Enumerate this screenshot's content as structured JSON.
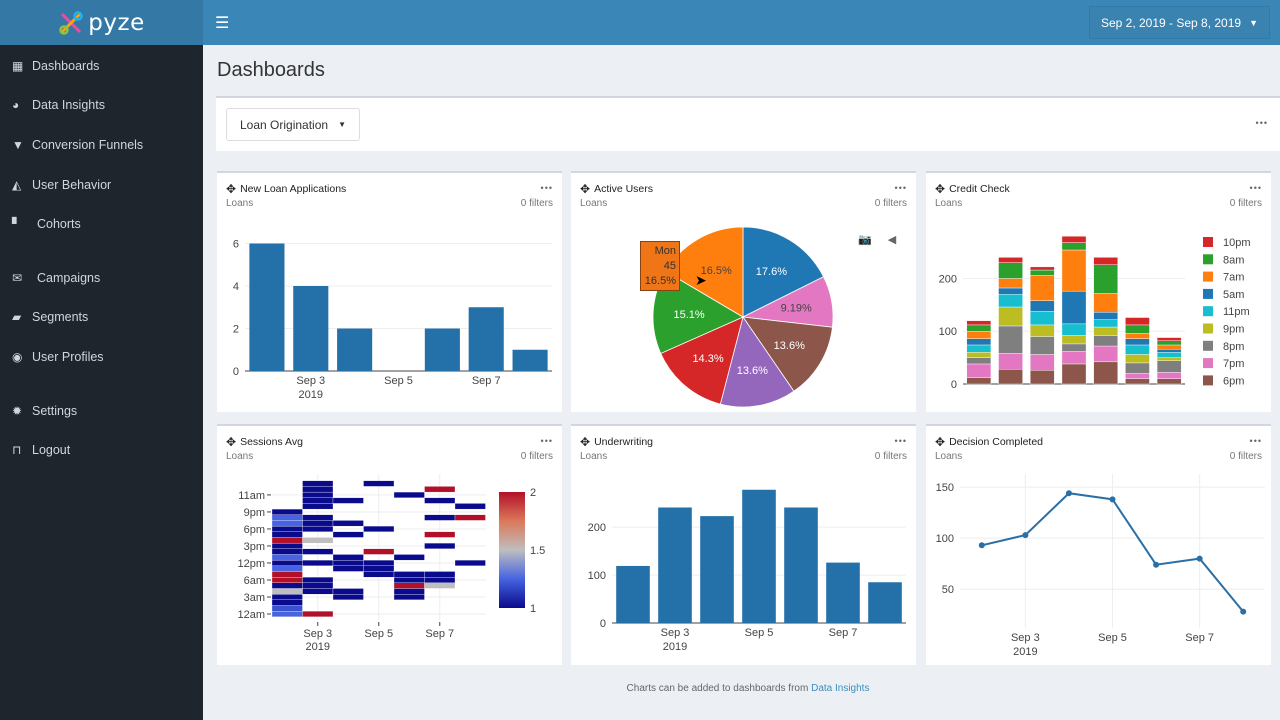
{
  "app": {
    "logo_text": "pyze",
    "menu_icon": "hamburger-icon",
    "date_range": "Sep 2, 2019 - Sep 8, 2019"
  },
  "sidebar": {
    "items": [
      {
        "label": "Dashboards",
        "icon": "dashboard-icon"
      },
      {
        "label": "Data Insights",
        "icon": "gauge-icon"
      },
      {
        "label": "Conversion Funnels",
        "icon": "funnel-icon"
      },
      {
        "label": "User Behavior",
        "icon": "area-chart-icon"
      },
      {
        "label": "Cohorts",
        "icon": "cohort-icon"
      },
      {
        "label": "Campaigns",
        "icon": "envelope-icon"
      },
      {
        "label": "Segments",
        "icon": "folder-icon"
      },
      {
        "label": "User Profiles",
        "icon": "user-circle-icon"
      },
      {
        "label": "Settings",
        "icon": "gear-icon"
      },
      {
        "label": "Logout",
        "icon": "unlock-icon"
      }
    ]
  },
  "page": {
    "title": "Dashboards",
    "dashboard_select": "Loan Origination",
    "more": "•••"
  },
  "footer": {
    "text": "Charts can be added to dashboards from ",
    "link": "Data Insights"
  },
  "cards": [
    {
      "title": "New Loan Applications",
      "subtitle": "Loans",
      "filters": "0 filters"
    },
    {
      "title": "Active Users",
      "subtitle": "Loans",
      "filters": "0 filters"
    },
    {
      "title": "Credit Check",
      "subtitle": "Loans",
      "filters": "0 filters"
    },
    {
      "title": "Sessions Avg",
      "subtitle": "Loans",
      "filters": "0 filters"
    },
    {
      "title": "Underwriting",
      "subtitle": "Loans",
      "filters": "0 filters"
    },
    {
      "title": "Decision Completed",
      "subtitle": "Loans",
      "filters": "0 filters"
    }
  ],
  "tooltip": {
    "label": "Mon",
    "value": "45",
    "percent": "16.5%"
  },
  "chart_data": [
    {
      "type": "bar",
      "x": [
        "Sep 2",
        "Sep 3",
        "Sep 4",
        "Sep 5",
        "Sep 6",
        "Sep 7",
        "Sep 8"
      ],
      "values": [
        6,
        4,
        2,
        0,
        2,
        3,
        1
      ],
      "ylim": [
        0,
        6.4
      ],
      "yticks": [
        0,
        2,
        4,
        6
      ],
      "xticks": [
        {
          "i": 1,
          "label": "Sep 3",
          "sub": "2019"
        },
        {
          "i": 3,
          "label": "Sep 5"
        },
        {
          "i": 5,
          "label": "Sep 7"
        }
      ],
      "color": "#2470a8",
      "grid": true
    },
    {
      "type": "pie",
      "values": [
        17.6,
        9.19,
        13.6,
        13.6,
        14.3,
        15.1,
        16.5
      ],
      "labels_text": [
        "17.6%",
        "9.19%",
        "13.6%",
        "13.6%",
        "14.3%",
        "15.1%",
        "16.5%"
      ],
      "colors": [
        "#1f77b4",
        "#e377c2",
        "#8c564b",
        "#9467bd",
        "#d62728",
        "#2ca02c",
        "#ff7f0e"
      ]
    },
    {
      "type": "stacked-bar",
      "x": [
        "Sep 2",
        "Sep 3",
        "Sep 4",
        "Sep 5",
        "Sep 6",
        "Sep 7",
        "Sep 8"
      ],
      "ylim": [
        0,
        290
      ],
      "yticks": [
        0,
        100,
        200
      ],
      "legend": "right",
      "series": [
        {
          "name": "10pm",
          "color": "#d62728",
          "values": [
            8,
            10,
            6,
            12,
            14,
            14,
            6
          ]
        },
        {
          "name": "8am",
          "color": "#2ca02c",
          "values": [
            12,
            30,
            10,
            14,
            54,
            16,
            8
          ]
        },
        {
          "name": "7am",
          "color": "#ff7f0e",
          "values": [
            14,
            18,
            48,
            78,
            36,
            10,
            8
          ]
        },
        {
          "name": "5am",
          "color": "#1f77b4",
          "values": [
            12,
            12,
            20,
            62,
            14,
            12,
            6
          ]
        },
        {
          "name": "11pm",
          "color": "#17becf",
          "values": [
            14,
            24,
            26,
            22,
            14,
            18,
            10
          ]
        },
        {
          "name": "9pm",
          "color": "#bcbd22",
          "values": [
            10,
            36,
            22,
            16,
            16,
            16,
            6
          ]
        },
        {
          "name": "8pm",
          "color": "#7f7f7f",
          "values": [
            12,
            52,
            34,
            14,
            20,
            20,
            22
          ]
        },
        {
          "name": "7pm",
          "color": "#e377c2",
          "values": [
            26,
            30,
            30,
            24,
            30,
            10,
            12
          ]
        },
        {
          "name": "6pm",
          "color": "#8c564b",
          "values": [
            12,
            28,
            26,
            38,
            42,
            10,
            10
          ]
        }
      ]
    },
    {
      "type": "heatmap",
      "x": [
        "Sep 2",
        "Sep 3",
        "Sep 4",
        "Sep 5",
        "Sep 6",
        "Sep 7",
        "Sep 8"
      ],
      "yticks": [
        {
          "row": 0,
          "label": "12am"
        },
        {
          "row": 3,
          "label": "3am"
        },
        {
          "row": 6,
          "label": "6am"
        },
        {
          "row": 9,
          "label": "12pm"
        },
        {
          "row": 12,
          "label": "3pm"
        },
        {
          "row": 15,
          "label": "6pm"
        },
        {
          "row": 18,
          "label": "9pm"
        },
        {
          "row": 21,
          "label": "11am"
        }
      ],
      "xticks": [
        {
          "i": 1,
          "label": "Sep 3",
          "sub": "2019"
        },
        {
          "i": 3,
          "label": "Sep 5"
        },
        {
          "i": 5,
          "label": "Sep 7"
        }
      ],
      "zrange": [
        1,
        2
      ],
      "colorbar_ticks": [
        1,
        1.5,
        2
      ],
      "cells": [
        [
          0,
          0,
          1.25
        ],
        [
          0,
          1,
          1.2
        ],
        [
          0,
          2,
          1
        ],
        [
          0,
          3,
          1
        ],
        [
          0,
          4,
          1.5
        ],
        [
          0,
          5,
          1
        ],
        [
          0,
          6,
          2
        ],
        [
          0,
          7,
          2
        ],
        [
          0,
          8,
          1.25
        ],
        [
          0,
          9,
          1
        ],
        [
          0,
          10,
          1.25
        ],
        [
          0,
          11,
          1
        ],
        [
          0,
          12,
          1
        ],
        [
          0,
          13,
          2
        ],
        [
          0,
          14,
          1
        ],
        [
          0,
          15,
          1
        ],
        [
          0,
          16,
          1.25
        ],
        [
          0,
          17,
          1.25
        ],
        [
          0,
          18,
          1
        ],
        [
          1,
          0,
          2
        ],
        [
          1,
          4,
          1
        ],
        [
          1,
          5,
          1
        ],
        [
          1,
          6,
          1
        ],
        [
          1,
          9,
          1
        ],
        [
          1,
          11,
          1
        ],
        [
          1,
          13,
          1.5
        ],
        [
          1,
          15,
          1
        ],
        [
          1,
          16,
          1
        ],
        [
          1,
          17,
          1
        ],
        [
          1,
          19,
          1
        ],
        [
          1,
          20,
          1
        ],
        [
          1,
          21,
          1
        ],
        [
          1,
          22,
          1
        ],
        [
          1,
          23,
          1
        ],
        [
          2,
          3,
          1
        ],
        [
          2,
          4,
          1
        ],
        [
          2,
          8,
          1
        ],
        [
          2,
          9,
          1
        ],
        [
          2,
          10,
          1
        ],
        [
          2,
          14,
          1
        ],
        [
          2,
          16,
          1
        ],
        [
          2,
          20,
          1
        ],
        [
          3,
          7,
          1
        ],
        [
          3,
          8,
          1
        ],
        [
          3,
          9,
          1
        ],
        [
          3,
          11,
          2
        ],
        [
          3,
          15,
          1
        ],
        [
          3,
          23,
          1
        ],
        [
          4,
          3,
          1
        ],
        [
          4,
          4,
          1
        ],
        [
          4,
          5,
          2
        ],
        [
          4,
          6,
          1
        ],
        [
          4,
          7,
          1
        ],
        [
          4,
          10,
          1
        ],
        [
          4,
          21,
          1
        ],
        [
          5,
          5,
          1.5
        ],
        [
          5,
          6,
          1
        ],
        [
          5,
          7,
          1
        ],
        [
          5,
          12,
          1
        ],
        [
          5,
          14,
          2
        ],
        [
          5,
          17,
          1
        ],
        [
          5,
          20,
          1
        ],
        [
          5,
          22,
          2
        ],
        [
          6,
          9,
          1
        ],
        [
          6,
          17,
          2
        ],
        [
          6,
          19,
          1
        ]
      ]
    },
    {
      "type": "bar",
      "x": [
        "Sep 2",
        "Sep 3",
        "Sep 4",
        "Sep 5",
        "Sep 6",
        "Sep 7",
        "Sep 8"
      ],
      "values": [
        119,
        241,
        223,
        278,
        241,
        126,
        85
      ],
      "ylim": [
        0,
        290
      ],
      "yticks": [
        0,
        100,
        200
      ],
      "xticks": [
        {
          "i": 1,
          "label": "Sep 3",
          "sub": "2019"
        },
        {
          "i": 3,
          "label": "Sep 5"
        },
        {
          "i": 5,
          "label": "Sep 7"
        }
      ],
      "color": "#2470a8",
      "grid": true
    },
    {
      "type": "line",
      "x": [
        "Sep 2",
        "Sep 3",
        "Sep 4",
        "Sep 5",
        "Sep 6",
        "Sep 7",
        "Sep 8"
      ],
      "values": [
        93,
        103,
        144,
        138,
        74,
        80,
        28
      ],
      "ylim": [
        12,
        155
      ],
      "yticks": [
        50,
        100,
        150
      ],
      "xticks": [
        {
          "i": 1,
          "label": "Sep 3",
          "sub": "2019"
        },
        {
          "i": 3,
          "label": "Sep 5"
        },
        {
          "i": 5,
          "label": "Sep 7"
        }
      ],
      "color": "#2a6fa6",
      "grid": true
    }
  ]
}
